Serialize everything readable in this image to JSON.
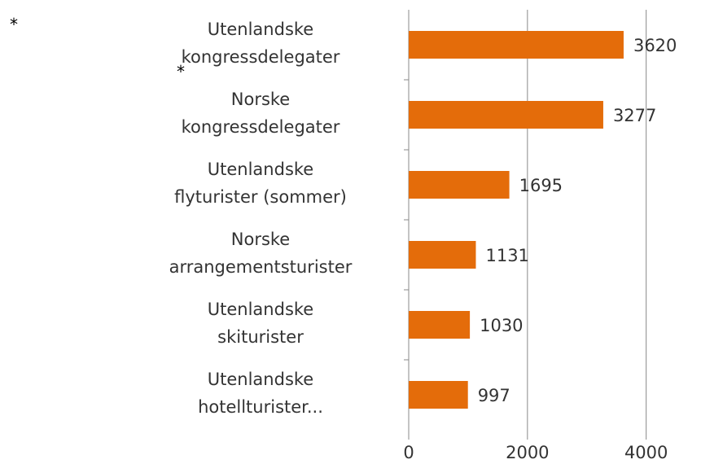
{
  "chart_data": {
    "type": "bar",
    "orientation": "horizontal",
    "categories": [
      "Utenlandske\nkongressdelegater",
      "Norske\nkongressdelegater",
      "Utenlandske\nflyturister (sommer)",
      "Norske\narrangementsturister",
      "Utenlandske\nskiturister",
      "Utenlandske\nhotellturister..."
    ],
    "values": [
      3620,
      3277,
      1695,
      1131,
      1030,
      997
    ],
    "color": "#e46c0a",
    "xlim": [
      0,
      4800
    ],
    "xticks": [
      0,
      2000,
      4000
    ],
    "grid": true,
    "annotations": [
      "*",
      "*"
    ]
  }
}
